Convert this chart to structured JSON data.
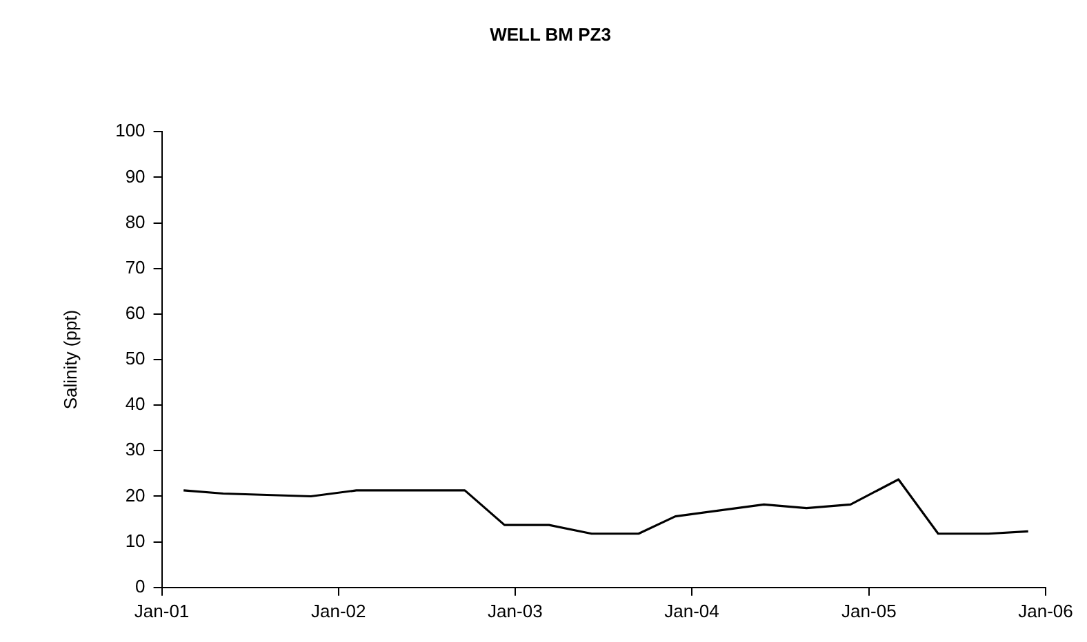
{
  "chart_data": {
    "type": "line",
    "title": "WELL BM PZ3",
    "ylabel": "Salinity (ppt)",
    "x": [
      "2001-02-15",
      "2001-05-08",
      "2001-11-05",
      "2002-02-07",
      "2002-09-19",
      "2002-12-10",
      "2003-03-12",
      "2003-06-08",
      "2003-09-13",
      "2003-11-28",
      "2004-05-29",
      "2004-08-25",
      "2004-11-24",
      "2005-03-03",
      "2005-05-24",
      "2005-09-05",
      "2005-11-26"
    ],
    "series": [
      {
        "color": "#000000",
        "values": [
          21.3,
          20.6,
          20,
          21.3,
          21.3,
          13.7,
          13.7,
          11.8,
          11.8,
          15.6,
          18.2,
          17.4,
          18.2,
          23.7,
          11.8,
          11.8,
          12.3
        ]
      }
    ],
    "xlim": [
      "2001-01-01",
      "2006-01-01"
    ],
    "xticks": [
      {
        "value": "2001-01-01",
        "label": "Jan-01"
      },
      {
        "value": "2002-01-01",
        "label": "Jan-02"
      },
      {
        "value": "2003-01-01",
        "label": "Jan-03"
      },
      {
        "value": "2004-01-01",
        "label": "Jan-04"
      },
      {
        "value": "2005-01-01",
        "label": "Jan-05"
      },
      {
        "value": "2006-01-01",
        "label": "Jan-06"
      }
    ],
    "ylim": [
      0,
      100
    ],
    "yticks": [
      0,
      10,
      20,
      30,
      40,
      50,
      60,
      70,
      80,
      90,
      100
    ],
    "grid": false,
    "legend": false,
    "marker": "none",
    "line_style": "solid"
  }
}
